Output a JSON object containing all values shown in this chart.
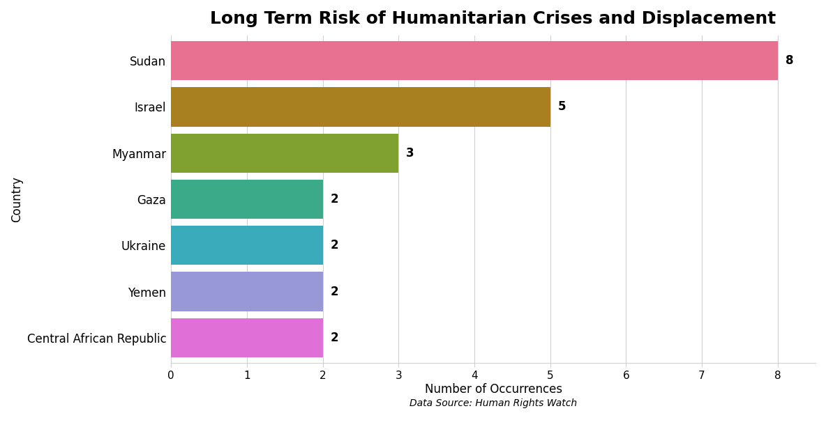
{
  "title": "Long Term Risk of Humanitarian Crises and Displacement",
  "categories": [
    "Central African Republic",
    "Yemen",
    "Ukraine",
    "Gaza",
    "Myanmar",
    "Israel",
    "Sudan"
  ],
  "values": [
    2,
    2,
    2,
    2,
    3,
    5,
    8
  ],
  "bar_colors": [
    "#e070d8",
    "#9898d8",
    "#3aabbb",
    "#3aaa88",
    "#80a030",
    "#a88020",
    "#e87090"
  ],
  "xlabel": "Number of Occurrences",
  "ylabel": "Country",
  "data_source": "Data Source: Human Rights Watch",
  "xlim": [
    0,
    8.5
  ],
  "xticks": [
    0,
    1,
    2,
    3,
    4,
    5,
    6,
    7,
    8
  ],
  "title_fontsize": 18,
  "label_fontsize": 12,
  "tick_fontsize": 11,
  "annotation_fontsize": 12,
  "background_color": "#ffffff",
  "grid_color": "#d0d0d0"
}
